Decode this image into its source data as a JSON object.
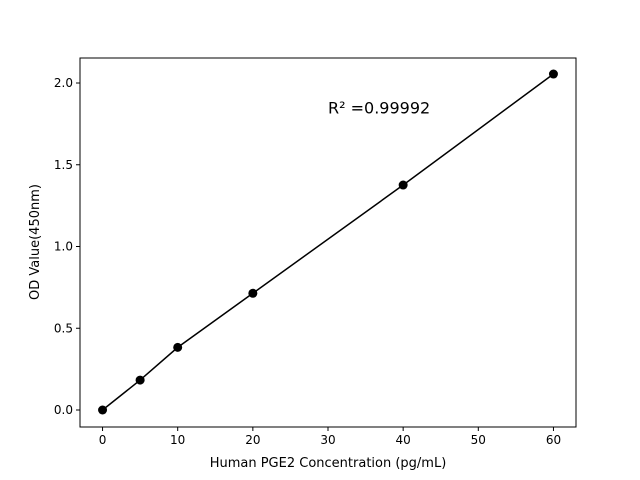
{
  "chart_data": {
    "type": "line",
    "title": "",
    "xlabel": "Human PGE2 Concentration (pg/mL)",
    "ylabel": "OD Value(450nm)",
    "xlim": [
      -3,
      63
    ],
    "ylim": [
      -0.104,
      2.153
    ],
    "xticks": [
      0,
      10,
      20,
      30,
      40,
      50,
      60
    ],
    "yticks": [
      0.0,
      0.5,
      1.0,
      1.5,
      2.0
    ],
    "xtick_labels": [
      "0",
      "10",
      "20",
      "30",
      "40",
      "50",
      "60"
    ],
    "ytick_labels": [
      "0.0",
      "0.5",
      "1.0",
      "1.5",
      "2.0"
    ],
    "grid": false,
    "series": [
      {
        "x": [
          0,
          5,
          10,
          20,
          40,
          60
        ],
        "y": [
          0.0,
          0.183,
          0.383,
          0.714,
          1.376,
          2.055
        ],
        "color": "#000000",
        "marker": "circle"
      }
    ],
    "annotations": [
      {
        "text": "R² =0.99992",
        "x": 30,
        "y": 1.85
      }
    ]
  }
}
